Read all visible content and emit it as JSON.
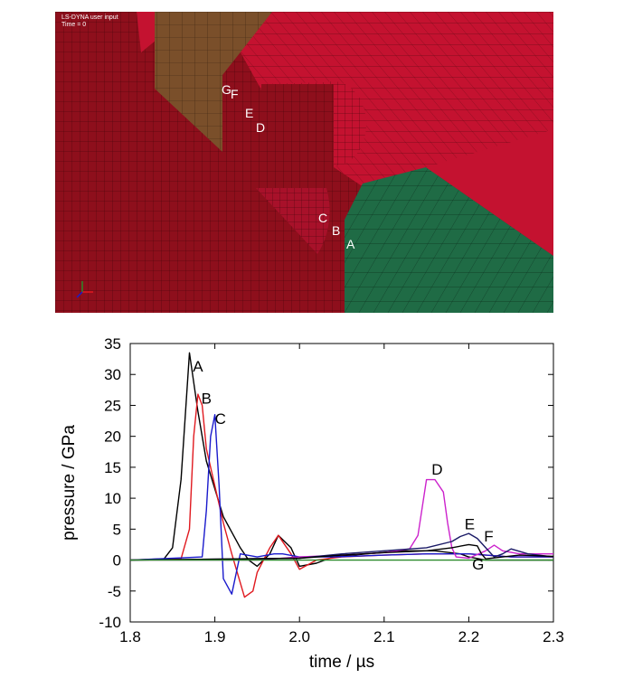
{
  "mesh_view": {
    "hud_title": "LS-DYNA user input",
    "hud_time": "Time =      0",
    "labels": [
      "G",
      "F",
      "E",
      "D",
      "C",
      "B",
      "A"
    ],
    "colors": {
      "red": "#8e0f1c",
      "red_light": "#c41230",
      "brown": "#7a4f2a",
      "green": "#1f6b45"
    }
  },
  "chart_data": {
    "type": "line",
    "title": "",
    "xlabel": "time / µs",
    "ylabel": "pressure / GPa",
    "xlim": [
      1.8,
      2.3
    ],
    "ylim": [
      -10,
      35
    ],
    "xticks": [
      1.8,
      1.9,
      2.0,
      2.1,
      2.2,
      2.3
    ],
    "yticks": [
      35,
      30,
      25,
      20,
      15,
      10,
      5,
      0,
      -5,
      -10
    ],
    "grid": false,
    "legend": "none",
    "series": [
      {
        "name": "A",
        "color": "#000000",
        "x": [
          1.8,
          1.84,
          1.85,
          1.86,
          1.87,
          1.88,
          1.89,
          1.91,
          1.93,
          1.94,
          1.95,
          1.965,
          1.975,
          1.99,
          2.0,
          2.02,
          2.04,
          2.08,
          2.12,
          2.16,
          2.19,
          2.2,
          2.22,
          2.25,
          2.3
        ],
        "y": [
          0,
          0.2,
          2,
          13,
          33.5,
          24,
          16,
          7,
          2,
          0,
          -1,
          1,
          4,
          2,
          -1,
          -0.5,
          0.5,
          1,
          1.5,
          1.5,
          1,
          0.5,
          0,
          0,
          0
        ]
      },
      {
        "name": "B",
        "color": "#e0191f",
        "x": [
          1.8,
          1.86,
          1.87,
          1.875,
          1.88,
          1.885,
          1.89,
          1.9,
          1.91,
          1.92,
          1.935,
          1.945,
          1.95,
          1.965,
          1.975,
          1.99,
          2.0,
          2.02,
          2.05,
          2.1,
          2.15,
          2.2,
          2.25,
          2.3
        ],
        "y": [
          0,
          0.2,
          5,
          20,
          26.8,
          25,
          18,
          12,
          6,
          1,
          -6,
          -5,
          -2,
          2,
          4,
          1,
          -1.5,
          0,
          0.5,
          0.8,
          1,
          1,
          0.5,
          0.5
        ]
      },
      {
        "name": "C",
        "color": "#1a1acc",
        "x": [
          1.8,
          1.885,
          1.89,
          1.895,
          1.9,
          1.905,
          1.91,
          1.92,
          1.93,
          1.95,
          1.97,
          1.98,
          2.0,
          2.04,
          2.1,
          2.15,
          2.2,
          2.25,
          2.3
        ],
        "y": [
          0,
          0.5,
          8,
          20,
          23.5,
          12,
          -3,
          -5.5,
          1,
          0.5,
          1,
          1,
          0.5,
          0.5,
          0.8,
          1,
          1,
          0.5,
          0.5
        ]
      },
      {
        "name": "D",
        "color": "#cc22cc",
        "x": [
          1.8,
          1.95,
          2.0,
          2.05,
          2.1,
          2.13,
          2.14,
          2.15,
          2.16,
          2.17,
          2.175,
          2.18,
          2.185,
          2.2,
          2.22,
          2.23,
          2.24,
          2.26,
          2.3
        ],
        "y": [
          0,
          0,
          0.5,
          0.8,
          1.2,
          1.8,
          4,
          13,
          13,
          11,
          6,
          2,
          0.5,
          0.3,
          1.5,
          2.4,
          1.5,
          1,
          1
        ]
      },
      {
        "name": "E",
        "color": "#1a1a66",
        "x": [
          1.8,
          2.0,
          2.05,
          2.1,
          2.15,
          2.18,
          2.19,
          2.2,
          2.21,
          2.22,
          2.23,
          2.24,
          2.25,
          2.27,
          2.3
        ],
        "y": [
          0,
          0.3,
          1,
          1.5,
          2,
          3,
          3.8,
          4.3,
          3.5,
          2,
          0.5,
          1,
          1.8,
          1,
          0.5
        ]
      },
      {
        "name": "F",
        "color": "#000000",
        "x": [
          1.8,
          2.0,
          2.05,
          2.1,
          2.15,
          2.18,
          2.2,
          2.21,
          2.215,
          2.22,
          2.24,
          2.26,
          2.3
        ],
        "y": [
          0,
          0.3,
          0.8,
          1.2,
          1.5,
          2,
          2.5,
          2.3,
          1,
          0.2,
          0.5,
          0.8,
          0.6
        ]
      },
      {
        "name": "G",
        "color": "#2a8a2a",
        "x": [
          1.8,
          2.3
        ],
        "y": [
          0,
          0
        ]
      }
    ],
    "label_positions": [
      {
        "text": "A",
        "x": 1.874,
        "y": 30.5
      },
      {
        "text": "B",
        "x": 1.884,
        "y": 25.3
      },
      {
        "text": "C",
        "x": 1.9,
        "y": 22
      },
      {
        "text": "D",
        "x": 2.156,
        "y": 13.8
      },
      {
        "text": "E",
        "x": 2.195,
        "y": 5
      },
      {
        "text": "F",
        "x": 2.218,
        "y": 3
      },
      {
        "text": "G",
        "x": 2.204,
        "y": -1.5
      }
    ]
  }
}
